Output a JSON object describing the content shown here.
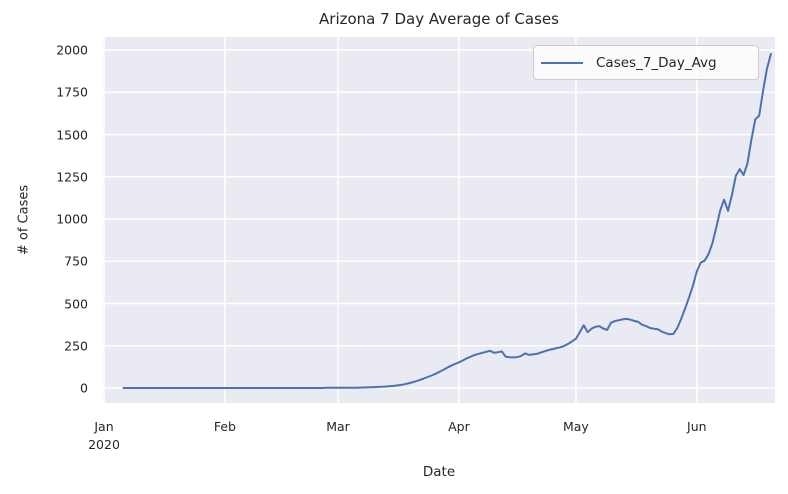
{
  "chart_data": {
    "type": "line",
    "title": "Arizona 7 Day Average of Cases",
    "xlabel": "Date",
    "ylabel": "# of Cases",
    "grid": true,
    "legend_position": "upper right",
    "colors": {
      "plot_background": "#eaeaf2",
      "grid": "#ffffff",
      "text": "#262626",
      "line": "#4c72b0",
      "legend_border": "#cccccc"
    },
    "y_ticks": [
      0,
      250,
      500,
      750,
      1000,
      1250,
      1500,
      1750,
      2000
    ],
    "ylim": [
      0,
      2000
    ],
    "x_ticks": [
      {
        "label": "Jan",
        "sublabel": "2020",
        "date": "2020-01-01"
      },
      {
        "label": "Feb",
        "sublabel": "",
        "date": "2020-02-01"
      },
      {
        "label": "Mar",
        "sublabel": "",
        "date": "2020-03-01"
      },
      {
        "label": "Apr",
        "sublabel": "",
        "date": "2020-04-01"
      },
      {
        "label": "May",
        "sublabel": "",
        "date": "2020-05-01"
      },
      {
        "label": "Jun",
        "sublabel": "",
        "date": "2020-06-01"
      }
    ],
    "series": [
      {
        "name": "Cases_7_Day_Avg",
        "color": "#4c72b0",
        "start_date": "2020-01-06",
        "end_date": "2020-06-20",
        "frequency": "daily",
        "values": [
          0,
          0,
          0,
          0,
          0,
          0,
          0,
          0,
          0,
          0,
          0,
          0,
          0,
          0,
          0,
          0,
          0,
          0,
          0,
          0,
          0,
          0,
          0,
          0,
          0,
          0,
          0,
          0,
          0,
          0,
          0,
          0,
          0,
          0,
          0,
          0,
          0,
          0,
          0,
          0,
          0,
          0,
          0,
          0,
          0,
          0,
          0,
          0,
          0,
          0,
          0,
          0,
          1,
          1,
          1,
          1,
          1,
          1,
          2,
          2,
          2,
          3,
          3,
          4,
          5,
          6,
          7,
          8,
          10,
          12,
          15,
          18,
          22,
          27,
          33,
          40,
          48,
          56,
          65,
          74,
          84,
          95,
          107,
          120,
          132,
          142,
          152,
          163,
          175,
          185,
          195,
          202,
          208,
          214,
          220,
          208,
          212,
          216,
          186,
          182,
          181,
          183,
          190,
          205,
          196,
          199,
          202,
          210,
          217,
          225,
          230,
          236,
          241,
          249,
          261,
          276,
          291,
          330,
          371,
          331,
          351,
          362,
          366,
          352,
          344,
          386,
          396,
          401,
          406,
          409,
          404,
          397,
          391,
          374,
          366,
          355,
          351,
          348,
          334,
          325,
          318,
          320,
          355,
          410,
          470,
          535,
          605,
          690,
          742,
          753,
          792,
          856,
          950,
          1050,
          1115,
          1048,
          1140,
          1255,
          1295,
          1260,
          1330,
          1470,
          1590,
          1612,
          1760,
          1890,
          1977
        ]
      }
    ]
  }
}
